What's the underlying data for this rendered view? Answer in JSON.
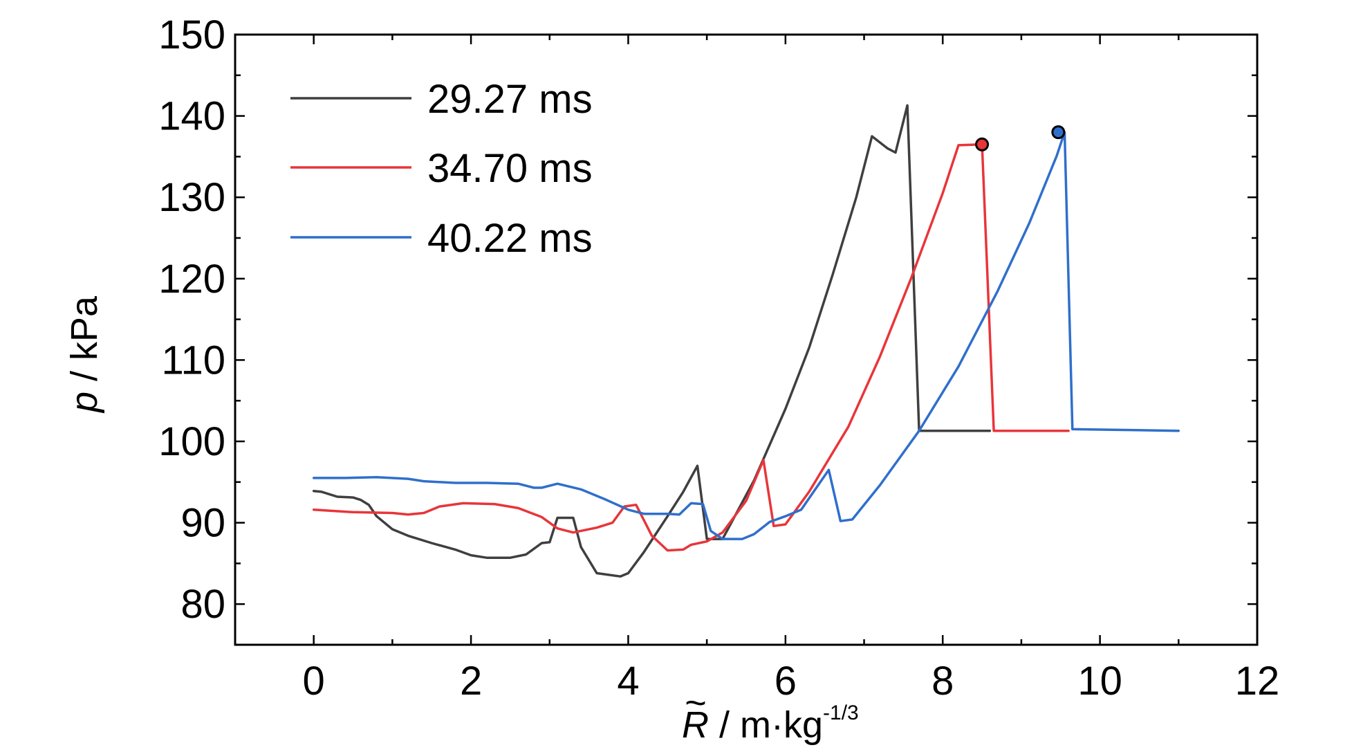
{
  "chart_data": {
    "type": "line",
    "title": "",
    "xlabel": {
      "symbol": "R",
      "tilde": "~",
      "text": " / m·kg",
      "exponent": "-1/3"
    },
    "ylabel": {
      "symbol": "p",
      "text": " / kPa"
    },
    "xlim": [
      -1,
      12
    ],
    "ylim": [
      75,
      150
    ],
    "xticks": [
      0,
      2,
      4,
      6,
      8,
      10,
      12
    ],
    "yticks": [
      80,
      90,
      100,
      110,
      120,
      130,
      140,
      150
    ],
    "xtick_labels": [
      "0",
      "2",
      "4",
      "6",
      "8",
      "10",
      "12"
    ],
    "ytick_labels": [
      "80",
      "90",
      "100",
      "110",
      "120",
      "130",
      "140",
      "150"
    ],
    "x_minor_step": 1,
    "y_minor_step": 5,
    "grid": false,
    "legend_position": "top-left",
    "series": [
      {
        "name": "29.27 ms",
        "color": "#3f3f3f",
        "points": [
          [
            0,
            93.9
          ],
          [
            0.1,
            93.8
          ],
          [
            0.3,
            93.2
          ],
          [
            0.5,
            93.1
          ],
          [
            0.6,
            92.8
          ],
          [
            0.7,
            92.2
          ],
          [
            0.8,
            90.8
          ],
          [
            1.0,
            89.2
          ],
          [
            1.2,
            88.4
          ],
          [
            1.5,
            87.5
          ],
          [
            1.8,
            86.7
          ],
          [
            2.0,
            86.0
          ],
          [
            2.2,
            85.7
          ],
          [
            2.5,
            85.7
          ],
          [
            2.7,
            86.1
          ],
          [
            2.9,
            87.5
          ],
          [
            3.0,
            87.6
          ],
          [
            3.1,
            90.6
          ],
          [
            3.3,
            90.6
          ],
          [
            3.4,
            87.0
          ],
          [
            3.6,
            83.8
          ],
          [
            3.9,
            83.4
          ],
          [
            4.0,
            83.8
          ],
          [
            4.2,
            86.4
          ],
          [
            4.5,
            90.8
          ],
          [
            4.7,
            93.8
          ],
          [
            4.88,
            97.0
          ],
          [
            5.0,
            88.0
          ],
          [
            5.2,
            88.0
          ],
          [
            5.6,
            95.2
          ],
          [
            6.0,
            104.0
          ],
          [
            6.3,
            111.5
          ],
          [
            6.6,
            120.5
          ],
          [
            6.9,
            130.0
          ],
          [
            7.1,
            137.5
          ],
          [
            7.3,
            136.0
          ],
          [
            7.4,
            135.5
          ],
          [
            7.55,
            141.3
          ],
          [
            7.7,
            101.3
          ],
          [
            8.6,
            101.3
          ]
        ]
      },
      {
        "name": "34.70 ms",
        "color": "#e8353a",
        "points": [
          [
            0,
            91.6
          ],
          [
            0.5,
            91.3
          ],
          [
            1.0,
            91.2
          ],
          [
            1.2,
            91.0
          ],
          [
            1.4,
            91.2
          ],
          [
            1.6,
            92.0
          ],
          [
            1.9,
            92.4
          ],
          [
            2.3,
            92.3
          ],
          [
            2.6,
            91.8
          ],
          [
            2.9,
            90.7
          ],
          [
            3.1,
            89.3
          ],
          [
            3.3,
            88.8
          ],
          [
            3.6,
            89.4
          ],
          [
            3.8,
            90.0
          ],
          [
            3.95,
            92.0
          ],
          [
            4.1,
            92.2
          ],
          [
            4.3,
            88.4
          ],
          [
            4.5,
            86.6
          ],
          [
            4.7,
            86.7
          ],
          [
            4.8,
            87.3
          ],
          [
            5.0,
            87.7
          ],
          [
            5.2,
            88.8
          ],
          [
            5.5,
            92.7
          ],
          [
            5.72,
            97.7
          ],
          [
            5.85,
            89.6
          ],
          [
            6.0,
            89.8
          ],
          [
            6.3,
            93.8
          ],
          [
            6.8,
            101.8
          ],
          [
            7.2,
            110.4
          ],
          [
            7.6,
            120.1
          ],
          [
            8.0,
            130.5
          ],
          [
            8.2,
            136.4
          ],
          [
            8.5,
            136.5
          ],
          [
            8.65,
            101.3
          ],
          [
            9.6,
            101.3
          ]
        ]
      },
      {
        "name": "40.22 ms",
        "color": "#2f6fcc",
        "points": [
          [
            0,
            95.5
          ],
          [
            0.4,
            95.5
          ],
          [
            0.8,
            95.6
          ],
          [
            1.2,
            95.4
          ],
          [
            1.4,
            95.1
          ],
          [
            1.8,
            94.9
          ],
          [
            2.2,
            94.9
          ],
          [
            2.6,
            94.8
          ],
          [
            2.8,
            94.3
          ],
          [
            2.9,
            94.3
          ],
          [
            3.1,
            94.8
          ],
          [
            3.4,
            94.1
          ],
          [
            3.7,
            92.9
          ],
          [
            4.0,
            91.6
          ],
          [
            4.2,
            91.1
          ],
          [
            4.5,
            91.1
          ],
          [
            4.65,
            91.0
          ],
          [
            4.8,
            92.4
          ],
          [
            4.95,
            92.3
          ],
          [
            5.05,
            89.0
          ],
          [
            5.2,
            88.0
          ],
          [
            5.45,
            88.0
          ],
          [
            5.6,
            88.6
          ],
          [
            5.8,
            90.1
          ],
          [
            6.0,
            90.8
          ],
          [
            6.2,
            91.6
          ],
          [
            6.4,
            94.4
          ],
          [
            6.55,
            96.5
          ],
          [
            6.7,
            90.2
          ],
          [
            6.85,
            90.4
          ],
          [
            7.2,
            94.6
          ],
          [
            7.7,
            101.3
          ],
          [
            8.2,
            109.2
          ],
          [
            8.7,
            118.5
          ],
          [
            9.1,
            126.8
          ],
          [
            9.45,
            135.1
          ],
          [
            9.55,
            138.0
          ],
          [
            9.65,
            101.5
          ],
          [
            11.0,
            101.3
          ]
        ]
      }
    ],
    "markers": [
      {
        "x": 8.5,
        "y": 136.5,
        "color": "#e8353a"
      },
      {
        "x": 9.47,
        "y": 138.0,
        "color": "#2f6fcc"
      }
    ]
  }
}
